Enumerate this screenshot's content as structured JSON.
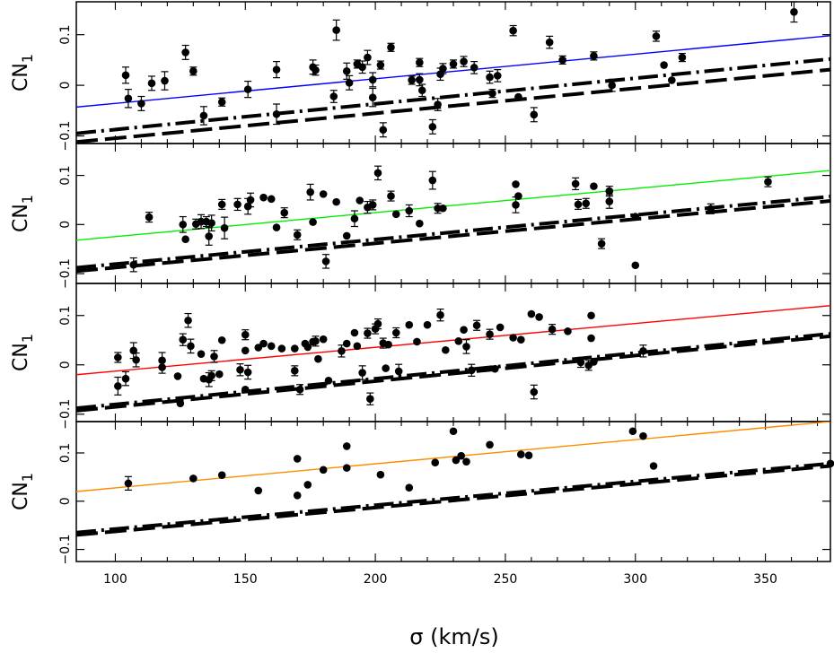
{
  "chart_data": {
    "type": "scatter",
    "xlabel": "σ (km/s)",
    "xlim": [
      85,
      375
    ],
    "xticks": [
      100,
      150,
      200,
      250,
      300,
      350
    ],
    "panels": [
      {
        "ylabel": "CN",
        "ylabel_sub": "1",
        "ylim": [
          -0.115,
          0.165
        ],
        "yticks": [
          {
            "v": 0.1,
            "t": "0.1"
          },
          {
            "v": 0.0,
            "t": "0"
          },
          {
            "v": -0.1,
            "t": "−0.1"
          }
        ],
        "fit_color": "#0000ff",
        "fit": [
          [
            85,
            -0.043
          ],
          [
            375,
            0.098
          ]
        ],
        "ref_dotdash": [
          [
            85,
            -0.095
          ],
          [
            375,
            0.052
          ]
        ],
        "ref_dash": [
          [
            85,
            -0.112
          ],
          [
            375,
            0.031
          ]
        ],
        "points": [
          [
            104,
            0.02,
            0.016
          ],
          [
            105,
            -0.026,
            0.018
          ],
          [
            110,
            -0.036,
            0.014
          ],
          [
            114,
            0.004,
            0.014
          ],
          [
            119,
            0.009,
            0.018
          ],
          [
            127,
            0.065,
            0.014
          ],
          [
            130,
            0.028,
            0.008
          ],
          [
            134,
            -0.06,
            0.018
          ],
          [
            141,
            -0.033,
            0.008
          ],
          [
            151,
            -0.008,
            0.016
          ],
          [
            162,
            0.031,
            0.016
          ],
          [
            162,
            -0.057,
            0.02
          ],
          [
            176,
            0.036,
            0.014
          ],
          [
            177,
            0.03,
            0.01
          ],
          [
            184,
            -0.022,
            0.012
          ],
          [
            185,
            0.109,
            0.02
          ],
          [
            189,
            0.028,
            0.016
          ],
          [
            190,
            0.005,
            0.014
          ],
          [
            193,
            0.042,
            0.008
          ],
          [
            195,
            0.036,
            0.012
          ],
          [
            197,
            0.055,
            0.014
          ],
          [
            199,
            0.011,
            0.014
          ],
          [
            199,
            -0.024,
            0.018
          ],
          [
            202,
            0.04,
            0.008
          ],
          [
            203,
            -0.088,
            0.014
          ],
          [
            206,
            0.075,
            0.008
          ],
          [
            214,
            0.01,
            0.008
          ],
          [
            217,
            0.045,
            0.008
          ],
          [
            217,
            0.011,
            0.012
          ],
          [
            218,
            -0.01,
            0.012
          ],
          [
            222,
            -0.082,
            0.014
          ],
          [
            224,
            -0.038,
            0.012
          ],
          [
            225,
            0.022,
            0.012
          ],
          [
            226,
            0.033,
            0.01
          ],
          [
            230,
            0.042,
            0.008
          ],
          [
            234,
            0.047,
            0.01
          ],
          [
            238,
            0.035,
            0.012
          ],
          [
            244,
            0.016,
            0.012
          ],
          [
            245,
            -0.016,
            0.008
          ],
          [
            247,
            0.019,
            0.012
          ],
          [
            253,
            0.108,
            0.01
          ],
          [
            255,
            -0.023,
            0.006
          ],
          [
            261,
            -0.058,
            0.014
          ],
          [
            267,
            0.085,
            0.012
          ],
          [
            272,
            0.05,
            0.008
          ],
          [
            284,
            0.058,
            0.008
          ],
          [
            291,
            0.0,
            0.012
          ],
          [
            308,
            0.097,
            0.01
          ],
          [
            311,
            0.04,
            0.006
          ],
          [
            314,
            0.01,
            0.006
          ],
          [
            318,
            0.055,
            0.008
          ],
          [
            361,
            0.145,
            0.02
          ]
        ]
      },
      {
        "ylabel": "CN",
        "ylabel_sub": "1",
        "ylim": [
          -0.12,
          0.165
        ],
        "yticks": [
          {
            "v": 0.1,
            "t": "0.1"
          },
          {
            "v": 0.0,
            "t": "0"
          },
          {
            "v": -0.1,
            "t": "−0.1"
          }
        ],
        "fit_color": "#00ee00",
        "fit": [
          [
            85,
            -0.032
          ],
          [
            375,
            0.11
          ]
        ],
        "ref_dotdash": [
          [
            85,
            -0.088
          ],
          [
            375,
            0.057
          ]
        ],
        "ref_dash": [
          [
            85,
            -0.095
          ],
          [
            375,
            0.048
          ]
        ],
        "points": [
          [
            107,
            -0.082,
            0.014
          ],
          [
            113,
            0.015,
            0.01
          ],
          [
            126,
            0.0,
            0.016
          ],
          [
            127,
            -0.03,
            0.008
          ],
          [
            131,
            0.001,
            0.01
          ],
          [
            133,
            0.006,
            0.014
          ],
          [
            135,
            0.006,
            0.01
          ],
          [
            136,
            -0.024,
            0.018
          ],
          [
            137,
            0.003,
            0.016
          ],
          [
            141,
            0.041,
            0.01
          ],
          [
            142,
            -0.007,
            0.022
          ],
          [
            147,
            0.041,
            0.012
          ],
          [
            151,
            0.037,
            0.016
          ],
          [
            152,
            0.05,
            0.014
          ],
          [
            157,
            0.055,
            0.008
          ],
          [
            160,
            0.052,
            0.008
          ],
          [
            162,
            -0.006,
            0.008
          ],
          [
            165,
            0.024,
            0.01
          ],
          [
            170,
            -0.021,
            0.01
          ],
          [
            175,
            0.066,
            0.016
          ],
          [
            176,
            0.005,
            0.006
          ],
          [
            180,
            0.062,
            0.008
          ],
          [
            181,
            -0.075,
            0.014
          ],
          [
            185,
            0.046,
            0.006
          ],
          [
            189,
            -0.023,
            0.008
          ],
          [
            192,
            0.012,
            0.016
          ],
          [
            194,
            0.049,
            0.006
          ],
          [
            197,
            0.035,
            0.012
          ],
          [
            199,
            0.04,
            0.01
          ],
          [
            201,
            0.105,
            0.014
          ],
          [
            206,
            0.058,
            0.01
          ],
          [
            208,
            0.021,
            0.006
          ],
          [
            213,
            0.028,
            0.012
          ],
          [
            217,
            0.002,
            0.008
          ],
          [
            222,
            0.09,
            0.018
          ],
          [
            224,
            0.033,
            0.01
          ],
          [
            226,
            0.033,
            0.008
          ],
          [
            254,
            0.04,
            0.016
          ],
          [
            254,
            0.082,
            0.008
          ],
          [
            255,
            0.058,
            0.006
          ],
          [
            277,
            0.083,
            0.012
          ],
          [
            278,
            0.041,
            0.01
          ],
          [
            281,
            0.043,
            0.01
          ],
          [
            284,
            0.078,
            0.006
          ],
          [
            287,
            -0.039,
            0.01
          ],
          [
            290,
            0.068,
            0.01
          ],
          [
            290,
            0.047,
            0.014
          ],
          [
            300,
            0.016,
            0.008
          ],
          [
            300,
            -0.083,
            0.006
          ],
          [
            329,
            0.032,
            0.01
          ],
          [
            351,
            0.087,
            0.01
          ]
        ]
      },
      {
        "ylabel": "CN",
        "ylabel_sub": "1",
        "ylim": [
          -0.115,
          0.165
        ],
        "yticks": [
          {
            "v": 0.1,
            "t": "0.1"
          },
          {
            "v": 0.0,
            "t": "0"
          },
          {
            "v": -0.1,
            "t": "−0.1"
          }
        ],
        "fit_color": "#ff0000",
        "fit": [
          [
            85,
            -0.02
          ],
          [
            375,
            0.12
          ]
        ],
        "ref_dotdash": [
          [
            85,
            -0.088
          ],
          [
            375,
            0.063
          ]
        ],
        "ref_dash": [
          [
            85,
            -0.093
          ],
          [
            375,
            0.058
          ]
        ],
        "points": [
          [
            101,
            0.015,
            0.01
          ],
          [
            101,
            -0.043,
            0.018
          ],
          [
            104,
            -0.028,
            0.014
          ],
          [
            107,
            0.029,
            0.016
          ],
          [
            108,
            0.01,
            0.014
          ],
          [
            118,
            0.009,
            0.016
          ],
          [
            118,
            -0.005,
            0.012
          ],
          [
            124,
            -0.023,
            0.008
          ],
          [
            125,
            -0.078,
            0.006
          ],
          [
            126,
            0.051,
            0.012
          ],
          [
            128,
            0.09,
            0.014
          ],
          [
            129,
            0.038,
            0.014
          ],
          [
            133,
            0.022,
            0.008
          ],
          [
            134,
            -0.028,
            0.008
          ],
          [
            136,
            -0.03,
            0.014
          ],
          [
            137,
            -0.022,
            0.01
          ],
          [
            138,
            0.017,
            0.012
          ],
          [
            140,
            -0.019,
            0.008
          ],
          [
            141,
            0.05,
            0.008
          ],
          [
            148,
            -0.01,
            0.012
          ],
          [
            150,
            0.029,
            0.008
          ],
          [
            150,
            -0.05,
            0.006
          ],
          [
            150,
            0.061,
            0.01
          ],
          [
            151,
            -0.015,
            0.014
          ],
          [
            155,
            0.035,
            0.008
          ],
          [
            157,
            0.043,
            0.006
          ],
          [
            160,
            0.038,
            0.008
          ],
          [
            164,
            0.033,
            0.006
          ],
          [
            169,
            0.033,
            0.006
          ],
          [
            169,
            -0.012,
            0.01
          ],
          [
            171,
            -0.05,
            0.01
          ],
          [
            173,
            0.043,
            0.006
          ],
          [
            174,
            0.036,
            0.006
          ],
          [
            176,
            0.047,
            0.008
          ],
          [
            177,
            0.048,
            0.01
          ],
          [
            178,
            0.012,
            0.004
          ],
          [
            180,
            0.052,
            0.008
          ],
          [
            182,
            -0.032,
            0.006
          ],
          [
            187,
            0.028,
            0.012
          ],
          [
            189,
            0.043,
            0.008
          ],
          [
            192,
            0.065,
            0.008
          ],
          [
            193,
            0.038,
            0.006
          ],
          [
            195,
            -0.016,
            0.014
          ],
          [
            197,
            0.064,
            0.01
          ],
          [
            198,
            -0.069,
            0.012
          ],
          [
            200,
            0.073,
            0.01
          ],
          [
            201,
            0.083,
            0.01
          ],
          [
            203,
            0.044,
            0.01
          ],
          [
            204,
            -0.007,
            0.008
          ],
          [
            205,
            0.041,
            0.008
          ],
          [
            208,
            0.065,
            0.01
          ],
          [
            209,
            -0.013,
            0.014
          ],
          [
            213,
            0.081,
            0.006
          ],
          [
            216,
            0.047,
            0.008
          ],
          [
            220,
            0.081,
            0.006
          ],
          [
            225,
            0.101,
            0.012
          ],
          [
            227,
            0.03,
            0.006
          ],
          [
            232,
            0.048,
            0.008
          ],
          [
            234,
            0.071,
            0.006
          ],
          [
            235,
            0.037,
            0.014
          ],
          [
            237,
            -0.011,
            0.012
          ],
          [
            239,
            0.08,
            0.01
          ],
          [
            244,
            0.062,
            0.01
          ],
          [
            246,
            -0.008,
            0.008
          ],
          [
            248,
            0.076,
            0.006
          ],
          [
            253,
            0.055,
            0.006
          ],
          [
            256,
            0.051,
            0.006
          ],
          [
            260,
            0.103,
            0.008
          ],
          [
            263,
            0.097,
            0.006
          ],
          [
            268,
            0.072,
            0.01
          ],
          [
            274,
            0.068,
            0.006
          ],
          [
            279,
            0.005,
            0.01
          ],
          [
            282,
            -0.001,
            0.01
          ],
          [
            283,
            0.1,
            0.006
          ],
          [
            283,
            0.054,
            0.006
          ],
          [
            284,
            0.006,
            0.008
          ],
          [
            303,
            0.028,
            0.012
          ],
          [
            261,
            -0.055,
            0.014
          ]
        ]
      },
      {
        "ylabel": "CN",
        "ylabel_sub": "1",
        "ylim": [
          -0.125,
          0.165
        ],
        "yticks": [
          {
            "v": 0.1,
            "t": "0.1"
          },
          {
            "v": 0.0,
            "t": "0"
          },
          {
            "v": -0.1,
            "t": "−0.1"
          }
        ],
        "fit_color": "#ff8c00",
        "fit": [
          [
            85,
            0.02
          ],
          [
            375,
            0.165
          ]
        ],
        "ref_dotdash": [
          [
            85,
            -0.065
          ],
          [
            375,
            0.078
          ]
        ],
        "ref_dash": [
          [
            85,
            -0.07
          ],
          [
            375,
            0.073
          ]
        ],
        "points": [
          [
            105,
            0.037,
            0.014
          ],
          [
            130,
            0.047,
            0.006
          ],
          [
            141,
            0.054,
            0.006
          ],
          [
            155,
            0.022,
            0.006
          ],
          [
            170,
            0.088,
            0.006
          ],
          [
            170,
            0.012,
            0.006
          ],
          [
            174,
            0.034,
            0.006
          ],
          [
            180,
            0.065,
            0.006
          ],
          [
            189,
            0.114,
            0.006
          ],
          [
            189,
            0.069,
            0.006
          ],
          [
            202,
            0.055,
            0.006
          ],
          [
            213,
            0.028,
            0.006
          ],
          [
            223,
            0.08,
            0.006
          ],
          [
            230,
            0.145,
            0.006
          ],
          [
            231,
            0.085,
            0.006
          ],
          [
            233,
            0.094,
            0.006
          ],
          [
            235,
            0.082,
            0.006
          ],
          [
            244,
            0.117,
            0.006
          ],
          [
            256,
            0.097,
            0.006
          ],
          [
            259,
            0.095,
            0.006
          ],
          [
            299,
            0.145,
            0.006
          ],
          [
            303,
            0.135,
            0.006
          ],
          [
            307,
            0.073,
            0.006
          ],
          [
            375,
            0.078,
            0.004
          ]
        ]
      }
    ]
  }
}
